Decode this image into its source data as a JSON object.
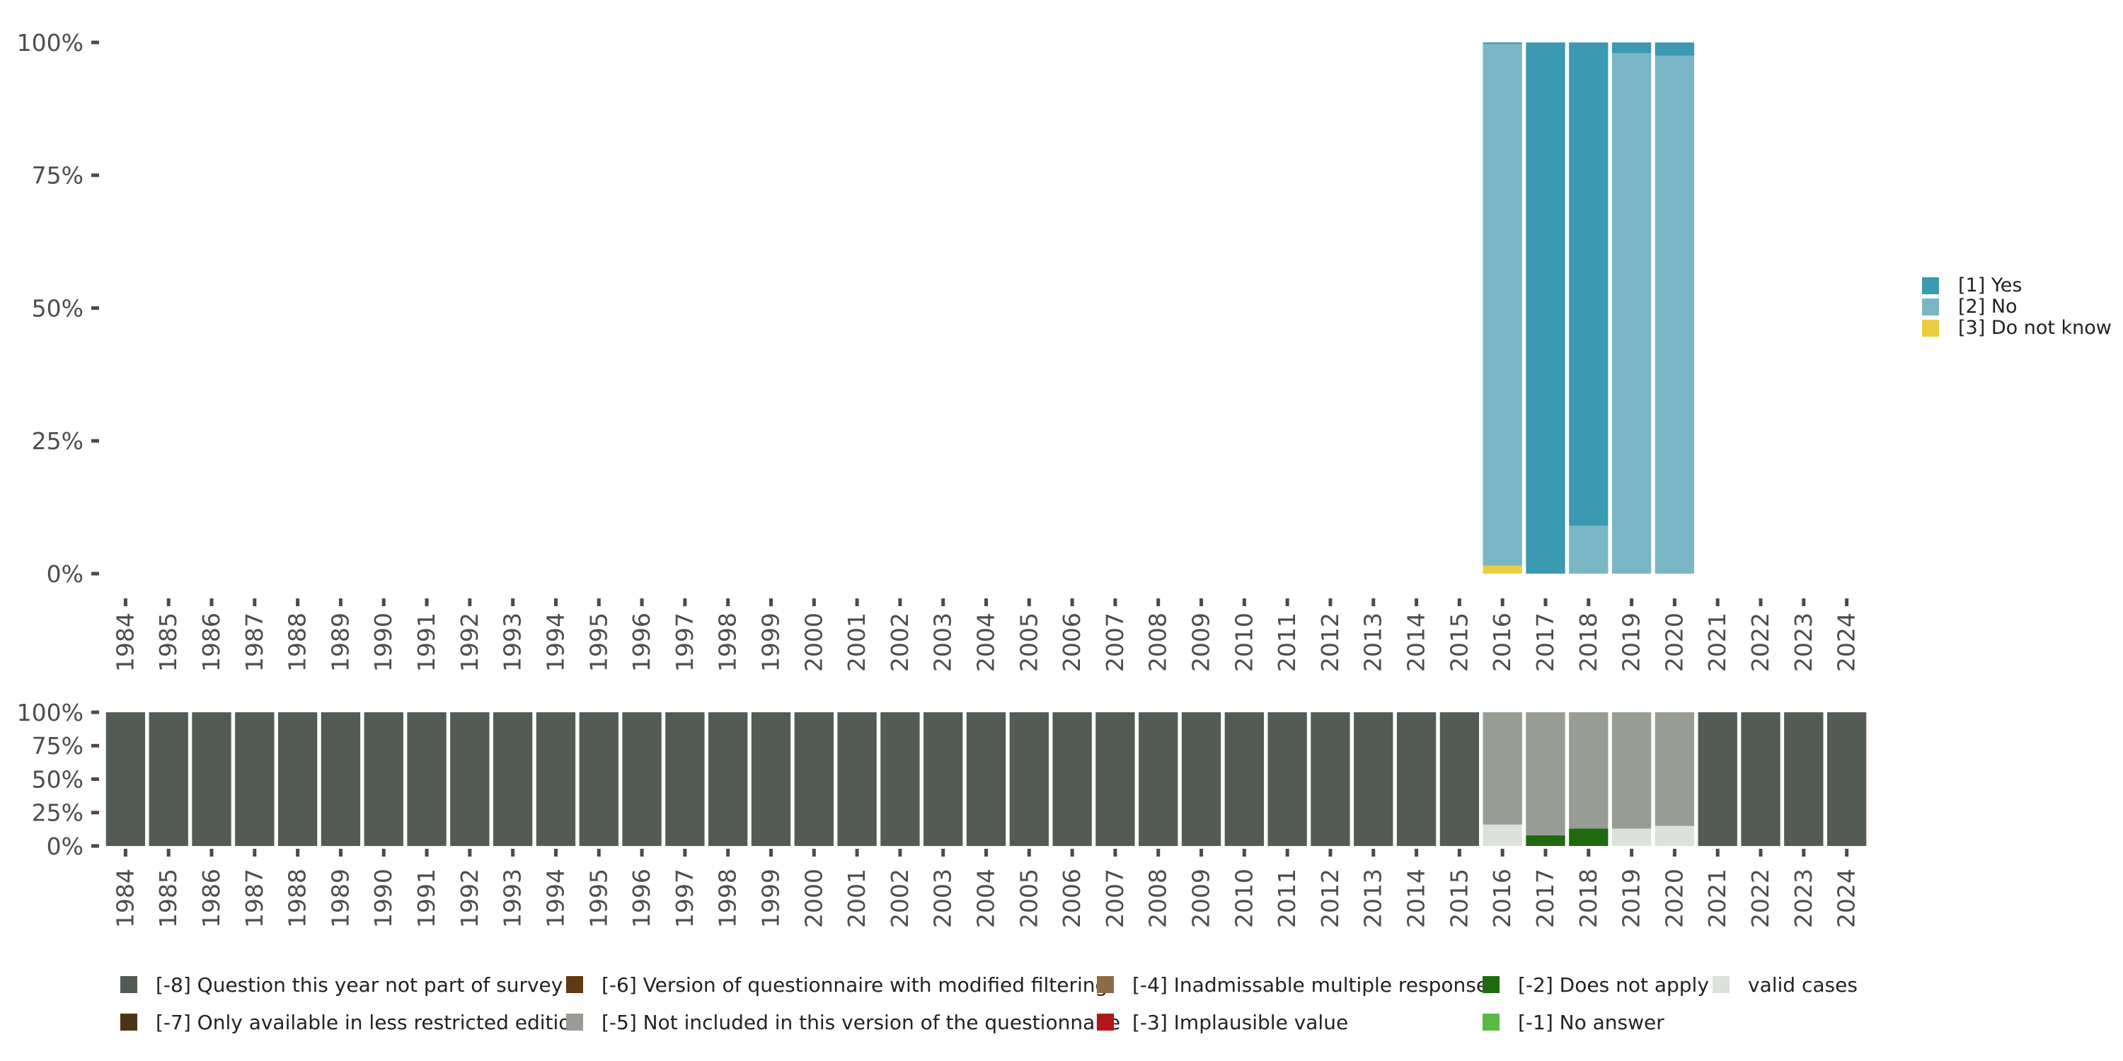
{
  "chart_data": [
    {
      "type": "bar",
      "stacked": true,
      "categories": [
        "1984",
        "1985",
        "1986",
        "1987",
        "1988",
        "1989",
        "1990",
        "1991",
        "1992",
        "1993",
        "1994",
        "1995",
        "1996",
        "1997",
        "1998",
        "1999",
        "2000",
        "2001",
        "2002",
        "2003",
        "2004",
        "2005",
        "2006",
        "2007",
        "2008",
        "2009",
        "2010",
        "2011",
        "2012",
        "2013",
        "2014",
        "2015",
        "2016",
        "2017",
        "2018",
        "2019",
        "2020",
        "2021",
        "2022",
        "2023",
        "2024"
      ],
      "y_ticks": [
        "0%",
        "25%",
        "50%",
        "75%",
        "100%"
      ],
      "ylim": [
        0,
        100
      ],
      "grid": false,
      "legend_position": "right",
      "series": [
        {
          "name": "[3] Do not know",
          "color": "#EACE3F",
          "values": {
            "2016": 1.5,
            "2017": 0,
            "2018": 0,
            "2019": 0,
            "2020": 0
          }
        },
        {
          "name": "[2] No",
          "color": "#7AB6C5",
          "values": {
            "2016": 98.2,
            "2017": 0,
            "2018": 9,
            "2019": 98,
            "2020": 97.5
          }
        },
        {
          "name": "[1] Yes",
          "color": "#3C99B2",
          "values": {
            "2016": 0.3,
            "2017": 100,
            "2018": 91,
            "2019": 2,
            "2020": 2.5
          }
        }
      ],
      "legend_order": [
        "[1] Yes",
        "[2] No",
        "[3] Do not know"
      ]
    },
    {
      "type": "bar",
      "stacked": true,
      "categories": [
        "1984",
        "1985",
        "1986",
        "1987",
        "1988",
        "1989",
        "1990",
        "1991",
        "1992",
        "1993",
        "1994",
        "1995",
        "1996",
        "1997",
        "1998",
        "1999",
        "2000",
        "2001",
        "2002",
        "2003",
        "2004",
        "2005",
        "2006",
        "2007",
        "2008",
        "2009",
        "2010",
        "2011",
        "2012",
        "2013",
        "2014",
        "2015",
        "2016",
        "2017",
        "2018",
        "2019",
        "2020",
        "2021",
        "2022",
        "2023",
        "2024"
      ],
      "y_ticks": [
        "0%",
        "25%",
        "50%",
        "75%",
        "100%"
      ],
      "ylim": [
        0,
        100
      ],
      "grid": false,
      "legend_position": "bottom",
      "series": [
        {
          "name": "valid cases",
          "color": "#DDE1DC",
          "values": {
            "2016": 16,
            "2017": 0,
            "2018": 0,
            "2019": 13,
            "2020": 15
          }
        },
        {
          "name": "[-2] Does not apply",
          "color": "#1F6A0E",
          "values": {
            "2016": 0,
            "2017": 8,
            "2018": 13,
            "2019": 0,
            "2020": 0
          }
        },
        {
          "name": "[-5] Not included in this version of the questionnaire",
          "color": "#979C94",
          "values": {
            "2016": 84,
            "2017": 92,
            "2018": 87,
            "2019": 87,
            "2020": 85
          }
        },
        {
          "name": "[-8] Question this year not part of survey",
          "color": "#545B55",
          "values": {
            "1984": 100,
            "1985": 100,
            "1986": 100,
            "1987": 100,
            "1988": 100,
            "1989": 100,
            "1990": 100,
            "1991": 100,
            "1992": 100,
            "1993": 100,
            "1994": 100,
            "1995": 100,
            "1996": 100,
            "1997": 100,
            "1998": 100,
            "1999": 100,
            "2000": 100,
            "2001": 100,
            "2002": 100,
            "2003": 100,
            "2004": 100,
            "2005": 100,
            "2006": 100,
            "2007": 100,
            "2008": 100,
            "2009": 100,
            "2010": 100,
            "2011": 100,
            "2012": 100,
            "2013": 100,
            "2014": 100,
            "2015": 100,
            "2021": 100,
            "2022": 100,
            "2023": 100,
            "2024": 100
          }
        }
      ],
      "legend": [
        {
          "name": "[-8] Question this year not part of survey",
          "color": "#545B55"
        },
        {
          "name": "[-7] Only available in less restricted edition",
          "color": "#4E3216"
        },
        {
          "name": "[-6] Version of questionnaire with modified filtering",
          "color": "#603A14"
        },
        {
          "name": "[-5] Not included in this version of the questionnaire",
          "color": "#979C94"
        },
        {
          "name": "[-4] Inadmissable multiple response",
          "color": "#8E6A45"
        },
        {
          "name": "[-3] Implausible value",
          "color": "#B2181B"
        },
        {
          "name": "[-2] Does not apply",
          "color": "#1F6A0E"
        },
        {
          "name": "[-1] No answer",
          "color": "#58BA43"
        },
        {
          "name": "valid cases",
          "color": "#DDE1DC"
        }
      ]
    }
  ]
}
